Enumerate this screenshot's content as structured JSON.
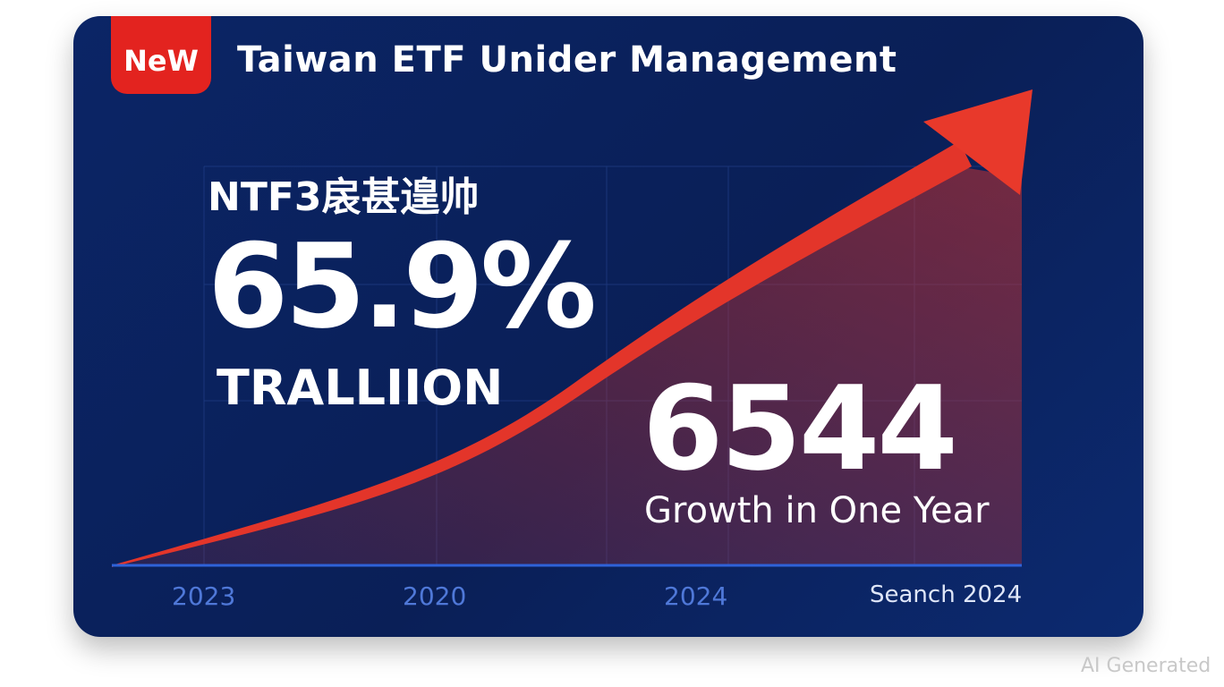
{
  "badge": "NeW",
  "title": "Taiwan ETF Unider Management",
  "subtitle": "NTF3扆甚遑帅",
  "headline": "65.9%",
  "headline_unit": "TRALLIION",
  "figure": "6544",
  "figure_caption": "Growth in One Year",
  "axis_labels": [
    "2023",
    "2020",
    "2024",
    "Seanch 2024"
  ],
  "watermark": "AI Generated"
}
